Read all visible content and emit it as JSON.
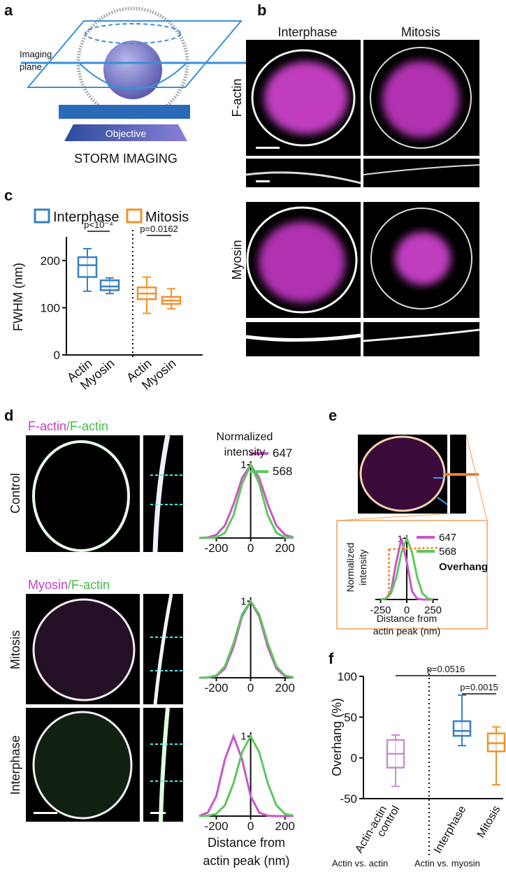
{
  "panel_labels": [
    "a",
    "b",
    "c",
    "d",
    "e",
    "f"
  ],
  "panel_a": {
    "plane_label": [
      "Imaging",
      "plane"
    ],
    "objective": "Objective",
    "caption": "STORM IMAGING"
  },
  "panel_b": {
    "columns": [
      "Interphase",
      "Mitosis"
    ],
    "rows": [
      "F-actin",
      "Myosin"
    ]
  },
  "panel_d": {
    "title_1": [
      "F-actin",
      "/F-actin"
    ],
    "title_2": [
      "Myosin",
      "/F-actin"
    ],
    "rows": [
      "Control",
      "Mitosis",
      "Interphase"
    ]
  },
  "chart_data": [
    {
      "type": "box",
      "y_label": "FWHM (nm)",
      "categories": [
        "Actin",
        "Myosin",
        "Actin",
        "Myosin"
      ],
      "ylim": [
        0,
        250
      ],
      "yticks": [
        0,
        100,
        200
      ],
      "legend": "top",
      "annotations": [
        "p<10⁻⁴",
        "p=0.0162"
      ],
      "series": [
        {
          "name": "Interphase",
          "color": "#3a7fc1",
          "boxes": [
            {
              "min": 135,
              "q1": 165,
              "median": 190,
              "q3": 207,
              "max": 225
            },
            {
              "min": 130,
              "q1": 137,
              "median": 145,
              "q3": 158,
              "max": 163
            }
          ]
        },
        {
          "name": "Mitosis",
          "color": "#f0922a",
          "boxes": [
            {
              "min": 88,
              "q1": 118,
              "median": 130,
              "q3": 143,
              "max": 165
            },
            {
              "min": 98,
              "q1": 108,
              "median": 115,
              "q3": 123,
              "max": 140
            }
          ]
        }
      ]
    },
    {
      "type": "line",
      "y_label": [
        "Normalized",
        "intensity"
      ],
      "x": [
        -300,
        -250,
        -200,
        -150,
        -100,
        -50,
        0,
        50,
        100,
        150,
        200,
        250
      ],
      "xlim": [
        -300,
        250
      ],
      "xticks": [
        -200,
        0,
        200
      ],
      "ylim": [
        0,
        1.05
      ],
      "yticks": [
        1
      ],
      "series": [
        {
          "name": "647",
          "color": "#c856c8",
          "values": [
            0.001,
            0.008,
            0.044,
            0.17,
            0.46,
            0.82,
            1,
            0.82,
            0.46,
            0.17,
            0.044,
            0.008
          ]
        },
        {
          "name": "568",
          "color": "#5cc85c",
          "values": [
            0,
            0.001,
            0.009,
            0.07,
            0.31,
            0.74,
            1,
            0.74,
            0.31,
            0.07,
            0.009,
            0.001
          ]
        }
      ]
    },
    {
      "type": "line",
      "x": [
        -300,
        -250,
        -200,
        -150,
        -100,
        -50,
        0,
        50,
        100,
        150,
        200,
        250
      ],
      "xlim": [
        -300,
        250
      ],
      "xticks": [
        -200,
        0,
        200
      ],
      "ylim": [
        0,
        1.05
      ],
      "yticks": [
        1
      ],
      "series": [
        {
          "color": "#c856c8",
          "values": [
            0,
            0.002,
            0.02,
            0.12,
            0.4,
            0.8,
            1,
            0.8,
            0.4,
            0.12,
            0.02,
            0.002
          ]
        },
        {
          "color": "#5cc85c",
          "values": [
            0,
            0.004,
            0.03,
            0.15,
            0.45,
            0.83,
            1,
            0.83,
            0.45,
            0.15,
            0.03,
            0.004
          ]
        }
      ]
    },
    {
      "type": "line",
      "x": [
        -300,
        -250,
        -200,
        -150,
        -100,
        -50,
        0,
        50,
        100,
        150,
        200,
        250
      ],
      "xlim": [
        -300,
        250
      ],
      "xticks": [
        -200,
        0,
        200
      ],
      "ylim": [
        0,
        1.05
      ],
      "yticks": [
        1
      ],
      "x_label": [
        "Distance from",
        "actin peak (nm)"
      ],
      "series": [
        {
          "color": "#c856c8",
          "values": [
            0.004,
            0.044,
            0.25,
            0.71,
            1,
            0.71,
            0.25,
            0.044,
            0.004,
            0,
            0,
            0
          ]
        },
        {
          "color": "#5cc85c",
          "values": [
            0,
            0.004,
            0.028,
            0.135,
            0.41,
            0.8,
            1,
            0.8,
            0.41,
            0.135,
            0.028,
            0.004
          ]
        }
      ]
    },
    {
      "type": "line",
      "y_label": [
        "Normalized",
        "intensity"
      ],
      "x": [
        -250,
        -200,
        -150,
        -100,
        -50,
        0,
        50,
        100,
        150,
        200,
        250
      ],
      "xlim": [
        -300,
        300
      ],
      "xticks": [
        -250,
        0,
        250
      ],
      "ylim": [
        0,
        1.05
      ],
      "yticks": [
        1
      ],
      "x_label": [
        "Distance from",
        "actin peak (nm)"
      ],
      "annotation": "Overhang",
      "series": [
        {
          "name": "647",
          "color": "#c856c8",
          "values": [
            0.0003,
            0.011,
            0.135,
            0.61,
            1,
            0.61,
            0.135,
            0.011,
            0.0003,
            0,
            0
          ]
        },
        {
          "name": "568",
          "color": "#5cc85c",
          "values": [
            0.002,
            0.017,
            0.1,
            0.36,
            0.77,
            1,
            0.77,
            0.36,
            0.1,
            0.017,
            0.002
          ]
        }
      ]
    },
    {
      "type": "box",
      "y_label": "Overhang (%)",
      "categories": [
        [
          "Actin-actin",
          "control"
        ],
        [
          "Interphase"
        ],
        [
          "Mitosis"
        ]
      ],
      "ylim": [
        -50,
        100
      ],
      "yticks": [
        -50,
        0,
        50,
        100
      ],
      "annotations": [
        "p=0.0516",
        "p=0.0015"
      ],
      "groups": [
        "Actin vs. actin",
        "Actin vs. myosin"
      ],
      "series": [
        {
          "color": "#c490d1",
          "boxes": [
            {
              "min": -35,
              "q1": -12,
              "median": 5,
              "q3": 22,
              "max": 28
            }
          ]
        },
        {
          "color": "#3a7fc1",
          "boxes": [
            {
              "min": 15,
              "q1": 27,
              "median": 33,
              "q3": 45,
              "max": 77
            }
          ]
        },
        {
          "color": "#f0922a",
          "boxes": [
            {
              "min": -33,
              "q1": 8,
              "median": 18,
              "q3": 30,
              "max": 38
            }
          ]
        }
      ]
    }
  ]
}
